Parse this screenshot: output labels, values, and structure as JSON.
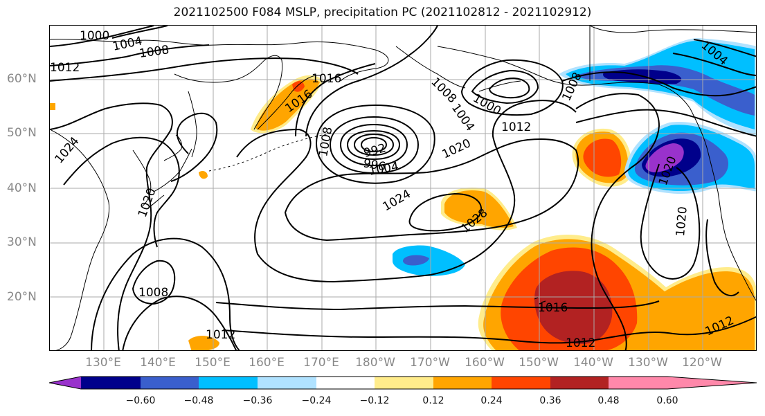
{
  "title": "2021102500 F084 MSLP, precipitation PC (2021102812 - 2021102912)",
  "latitude_labels": [
    "60°N",
    "50°N",
    "40°N",
    "30°N",
    "20°N"
  ],
  "longitude_labels": [
    "130°E",
    "140°E",
    "150°E",
    "160°E",
    "170°E",
    "180°W",
    "170°W",
    "160°W",
    "150°W",
    "140°W",
    "130°W",
    "120°W"
  ],
  "mslp_contour_labels": [
    "1000",
    "1004",
    "1008",
    "1012",
    "1016",
    "1016",
    "1024",
    "1020",
    "1008",
    "992",
    "996",
    "1004",
    "1008",
    "1004",
    "1000",
    "1012",
    "1020",
    "1024",
    "1028",
    "1004",
    "1008",
    "1020",
    "1020",
    "1016",
    "1012",
    "1012",
    "1012",
    "1008"
  ],
  "colorbar": {
    "ticks": [
      "−0.60",
      "−0.48",
      "−0.36",
      "−0.24",
      "−0.12",
      "0.12",
      "0.24",
      "0.36",
      "0.48",
      "0.60"
    ],
    "colors": [
      "#9932cc",
      "#00008b",
      "#3a5fcd",
      "#00bfff",
      "#b0e2ff",
      "#ffffff",
      "#ffec8b",
      "#ffa500",
      "#ff4500",
      "#b22222",
      "#ff88aa"
    ]
  },
  "colors": {
    "pos_1": "#ffec8b",
    "pos_2": "#ffa500",
    "pos_3": "#ff4500",
    "pos_4": "#b22222",
    "neg_1": "#b0e2ff",
    "neg_2": "#00bfff",
    "neg_3": "#3a5fcd",
    "neg_4": "#00008b",
    "neg_5": "#9932cc",
    "grid": "#aaaaaa",
    "label": "#888888"
  }
}
